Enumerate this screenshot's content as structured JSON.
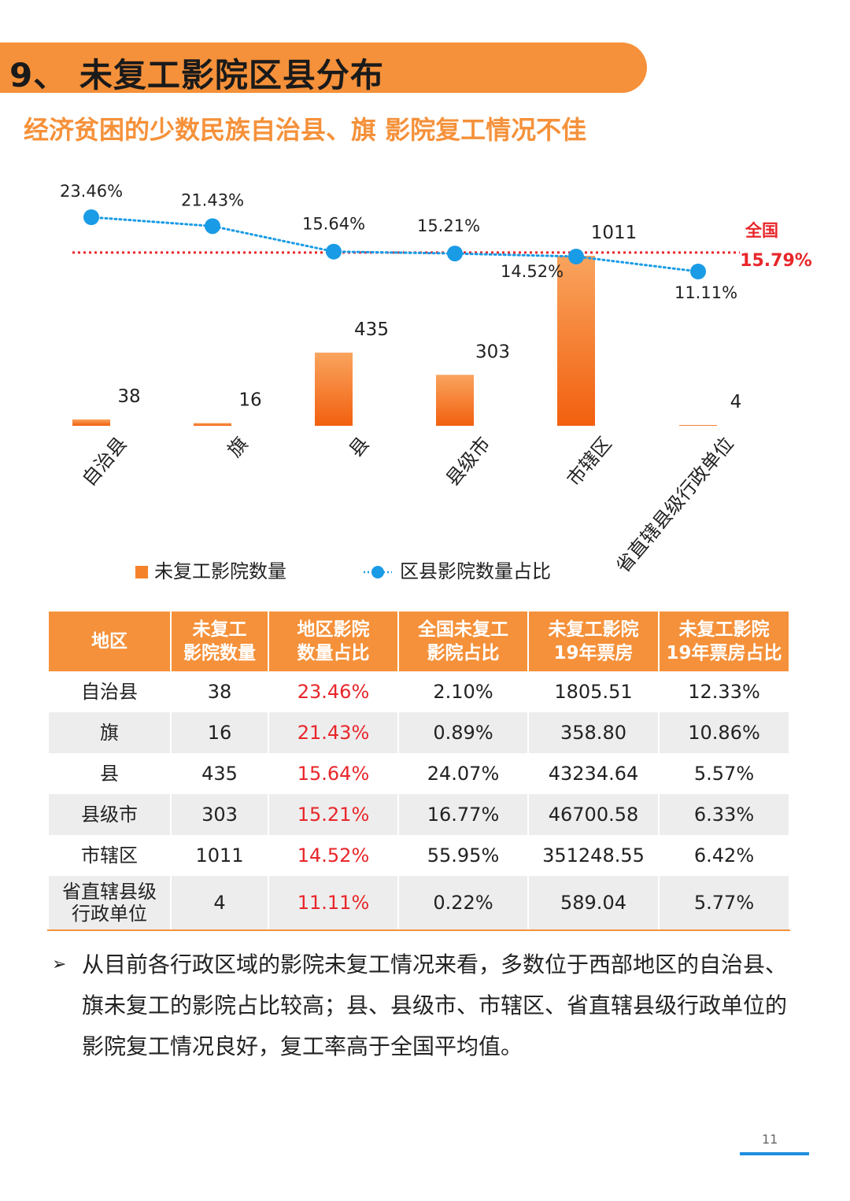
{
  "header": {
    "title": "9、 未复工影院区县分布",
    "subtitle": "经济贫困的少数民族自治县、旗 影院复工情况不佳"
  },
  "chart_data": {
    "type": "bar+line",
    "categories": [
      "自治县",
      "旗",
      "县",
      "县级市",
      "市辖区",
      "省直辖县级行政单位"
    ],
    "series": [
      {
        "name": "未复工影院数量",
        "kind": "bar",
        "values": [
          38,
          16,
          435,
          303,
          1011,
          4
        ],
        "labels": [
          "38",
          "16",
          "435",
          "303",
          "1011",
          "4"
        ]
      },
      {
        "name": "区县影院数量占比",
        "kind": "line",
        "values": [
          23.46,
          21.43,
          15.64,
          15.21,
          14.52,
          11.11
        ],
        "labels": [
          "23.46%",
          "21.43%",
          "15.64%",
          "15.21%",
          "14.52%",
          "11.11%"
        ]
      }
    ],
    "reference_line": {
      "label": "全国",
      "value": 15.79,
      "value_label": "15.79%"
    },
    "colors": {
      "bar_top": "#f9a45e",
      "bar_bottom": "#f2600f",
      "line": "#1a9be6",
      "reference": "#e8262a"
    }
  },
  "legend": {
    "bar": "未复工影院数量",
    "line": "区县影院数量占比"
  },
  "table": {
    "headers": [
      [
        "地区"
      ],
      [
        "未复工",
        "影院数量"
      ],
      [
        "地区影院",
        "数量占比"
      ],
      [
        "全国未复工",
        "影院占比"
      ],
      [
        "未复工影院",
        "19年票房"
      ],
      [
        "未复工影院",
        "19年票房占比"
      ]
    ],
    "rows": [
      {
        "region": [
          "自治县"
        ],
        "count": "38",
        "ratio": "23.46%",
        "national": "2.10%",
        "box": "1805.51",
        "box_ratio": "12.33%"
      },
      {
        "region": [
          "旗"
        ],
        "count": "16",
        "ratio": "21.43%",
        "national": "0.89%",
        "box": "358.80",
        "box_ratio": "10.86%"
      },
      {
        "region": [
          "县"
        ],
        "count": "435",
        "ratio": "15.64%",
        "national": "24.07%",
        "box": "43234.64",
        "box_ratio": "5.57%"
      },
      {
        "region": [
          "县级市"
        ],
        "count": "303",
        "ratio": "15.21%",
        "national": "16.77%",
        "box": "46700.58",
        "box_ratio": "6.33%"
      },
      {
        "region": [
          "市辖区"
        ],
        "count": "1011",
        "ratio": "14.52%",
        "national": "55.95%",
        "box": "351248.55",
        "box_ratio": "6.42%"
      },
      {
        "region": [
          "省直辖县级",
          "行政单位"
        ],
        "count": "4",
        "ratio": "11.11%",
        "national": "0.22%",
        "box": "589.04",
        "box_ratio": "5.77%"
      }
    ]
  },
  "note": {
    "bullet": "➢",
    "text": "从目前各行政区域的影院未复工情况来看，多数位于西部地区的自治县、旗未复工的影院占比较高；县、县级市、市辖区、省直辖县级行政单位的影院复工情况良好，复工率高于全国平均值。"
  },
  "footer": {
    "page": "11"
  }
}
